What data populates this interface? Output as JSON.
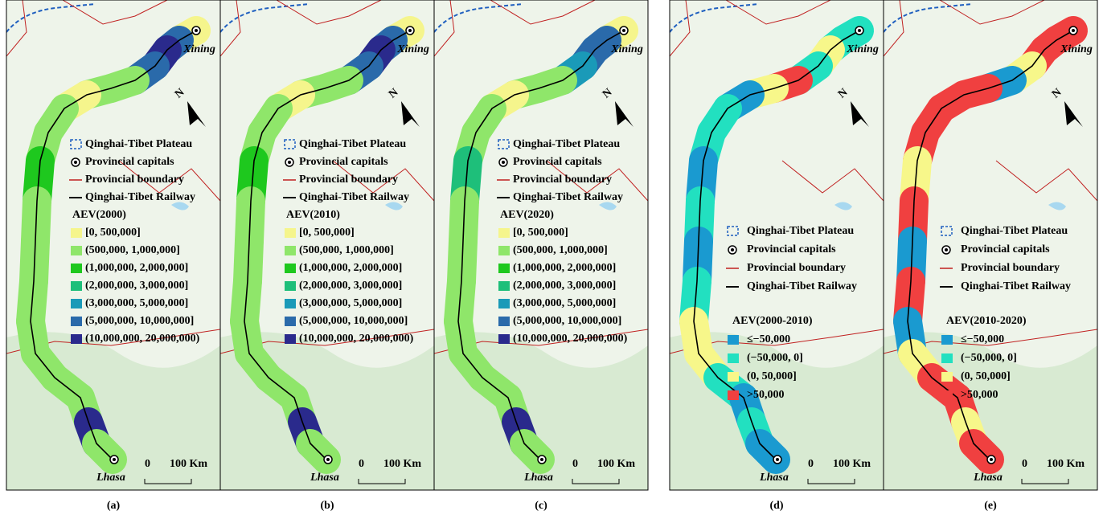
{
  "panels": [
    {
      "caption": "(a)",
      "cities": [
        "Xining",
        "Lhasa"
      ],
      "north": "N",
      "scale": [
        "0",
        "100 Km"
      ],
      "legend_items": [
        "Qinghai-Tibet Plateau",
        "Provincial capitals",
        "Provincial boundary",
        "Qinghai-Tibet Railway"
      ],
      "legend_title": "AEV(2000)",
      "classes": [
        {
          "label": "[0,  500,000]",
          "color": "#f5f58c"
        },
        {
          "label": "(500,000,  1,000,000]",
          "color": "#8fe66a"
        },
        {
          "label": "(1,000,000,  2,000,000]",
          "color": "#1ec81e"
        },
        {
          "label": "(2,000,000,  3,000,000]",
          "color": "#1ebf7a"
        },
        {
          "label": "(3,000,000,  5,000,000]",
          "color": "#1a9ab8"
        },
        {
          "label": "(5,000,000,  10,000,000]",
          "color": "#2a6aaa"
        },
        {
          "label": "(10,000,000,  20,000,000)",
          "color": "#2a2a8c"
        }
      ]
    },
    {
      "caption": "(b)",
      "cities": [
        "Xining",
        "Lhasa"
      ],
      "north": "N",
      "scale": [
        "0",
        "100 Km"
      ],
      "legend_items": [
        "Qinghai-Tibet Plateau",
        "Provincial capitals",
        "Provincial boundary",
        "Qinghai-Tibet Railway"
      ],
      "legend_title": "AEV(2010)",
      "classes": [
        {
          "label": "[0,  500,000]",
          "color": "#f5f58c"
        },
        {
          "label": "(500,000,  1,000,000]",
          "color": "#8fe66a"
        },
        {
          "label": "(1,000,000,  2,000,000]",
          "color": "#1ec81e"
        },
        {
          "label": "(2,000,000,  3,000,000]",
          "color": "#1ebf7a"
        },
        {
          "label": "(3,000,000,  5,000,000]",
          "color": "#1a9ab8"
        },
        {
          "label": "(5,000,000,  10,000,000]",
          "color": "#2a6aaa"
        },
        {
          "label": "(10,000,000,  20,000,000)",
          "color": "#2a2a8c"
        }
      ]
    },
    {
      "caption": "(c)",
      "cities": [
        "Xining",
        "Lhasa"
      ],
      "north": "N",
      "scale": [
        "0",
        "100 Km"
      ],
      "legend_items": [
        "Qinghai-Tibet Plateau",
        "Provincial capitals",
        "Provincial boundary",
        "Qinghai-Tibet Railway"
      ],
      "legend_title": "AEV(2020)",
      "classes": [
        {
          "label": "[0,  500,000]",
          "color": "#f5f58c"
        },
        {
          "label": "(500,000,  1,000,000]",
          "color": "#8fe66a"
        },
        {
          "label": "(1,000,000,  2,000,000]",
          "color": "#1ec81e"
        },
        {
          "label": "(2,000,000,  3,000,000]",
          "color": "#1ebf7a"
        },
        {
          "label": "(3,000,000,  5,000,000]",
          "color": "#1a9ab8"
        },
        {
          "label": "(5,000,000,  10,000,000]",
          "color": "#2a6aaa"
        },
        {
          "label": "(10,000,000,  20,000,000)",
          "color": "#2a2a8c"
        }
      ]
    },
    {
      "caption": "(d)",
      "cities": [
        "Xining",
        "Lhasa"
      ],
      "north": "N",
      "scale": [
        "0",
        "100 Km"
      ],
      "legend_items": [
        "Qinghai-Tibet Plateau",
        "Provincial capitals",
        "Provincial boundary",
        "Qinghai-Tibet Railway"
      ],
      "legend_title": "AEV(2000-2010)",
      "classes": [
        {
          "label": "≤−50,000",
          "color": "#1a9ad0"
        },
        {
          "label": "(−50,000,  0]",
          "color": "#22e0c0"
        },
        {
          "label": "(0,  50,000]",
          "color": "#f7f78a"
        },
        {
          "label": ">50,000",
          "color": "#f04040"
        }
      ]
    },
    {
      "caption": "(e)",
      "cities": [
        "Xining",
        "Lhasa"
      ],
      "north": "N",
      "scale": [
        "0",
        "100 Km"
      ],
      "legend_items": [
        "Qinghai-Tibet Plateau",
        "Provincial capitals",
        "Provincial boundary",
        "Qinghai-Tibet Railway"
      ],
      "legend_title": "AEV(2010-2020)",
      "classes": [
        {
          "label": "≤−50,000",
          "color": "#1a9ad0"
        },
        {
          "label": "(−50,000,  0]",
          "color": "#22e0c0"
        },
        {
          "label": "(0,  50,000]",
          "color": "#f7f78a"
        },
        {
          "label": ">50,000",
          "color": "#f04040"
        }
      ]
    }
  ]
}
